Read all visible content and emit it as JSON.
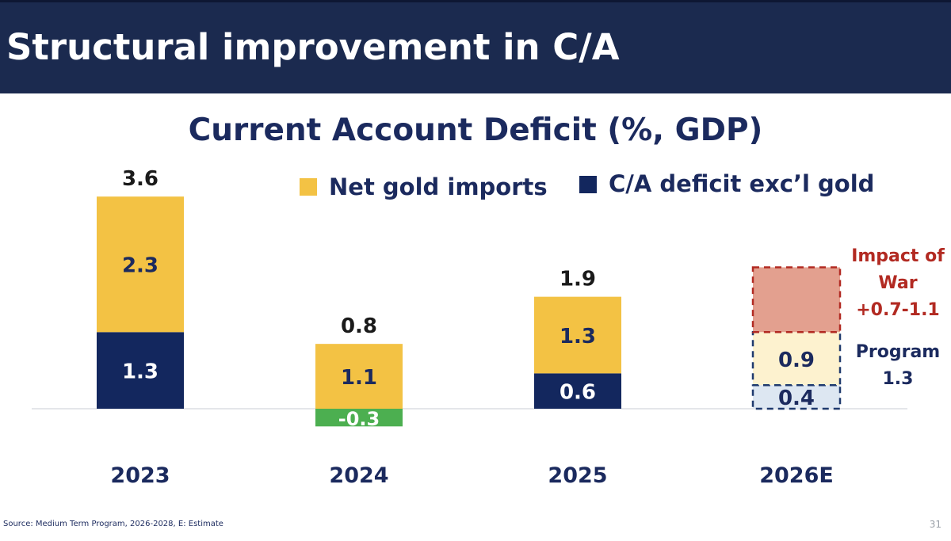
{
  "header": {
    "title": "Structural improvement in C/A"
  },
  "chart_data": {
    "type": "bar",
    "stacked": true,
    "title": "Current Account Deficit (%, GDP)",
    "categories": [
      "2023",
      "2024",
      "2025",
      "2026E"
    ],
    "series": [
      {
        "name": "C/A deficit exc’l gold",
        "values": [
          1.3,
          -0.3,
          0.6,
          0.4
        ],
        "value_labels": [
          "1.3",
          "-0.3",
          "0.6",
          "0.4"
        ]
      },
      {
        "name": "Net gold imports",
        "values": [
          2.3,
          1.1,
          1.3,
          0.9
        ],
        "value_labels": [
          "2.3",
          "1.1",
          "1.3",
          "0.9"
        ]
      }
    ],
    "totals": [
      "3.6",
      "0.8",
      "1.9",
      ""
    ],
    "impact_of_war": {
      "category": "2026E",
      "low": 0.7,
      "high": 1.1,
      "label_lines": [
        "Impact of",
        "War",
        "+0.7-1.1"
      ]
    },
    "program_label_lines": [
      "Program",
      "1.3"
    ],
    "legend": [
      {
        "label": "Net gold imports",
        "color": "#f3c244"
      },
      {
        "label": "C/A deficit exc’l gold",
        "color": "#13275e"
      }
    ],
    "colors": {
      "gold": "#f3c244",
      "deficit": "#13275e",
      "negative": "#4caf50",
      "estimate_gold_fill": "#fdf2cf",
      "estimate_deficit_fill": "#dde7f2",
      "war_fill": "#e3a08f",
      "war_border": "#b22a22",
      "estimate_border": "#1f3a6e",
      "text": "#1b2a5e"
    },
    "ylim": [
      -0.3,
      3.6
    ],
    "xlabel": "",
    "ylabel": ""
  },
  "footer": {
    "source": "Source: Medium Term Program, 2026-2028, E: Estimate",
    "page_number": "31"
  }
}
